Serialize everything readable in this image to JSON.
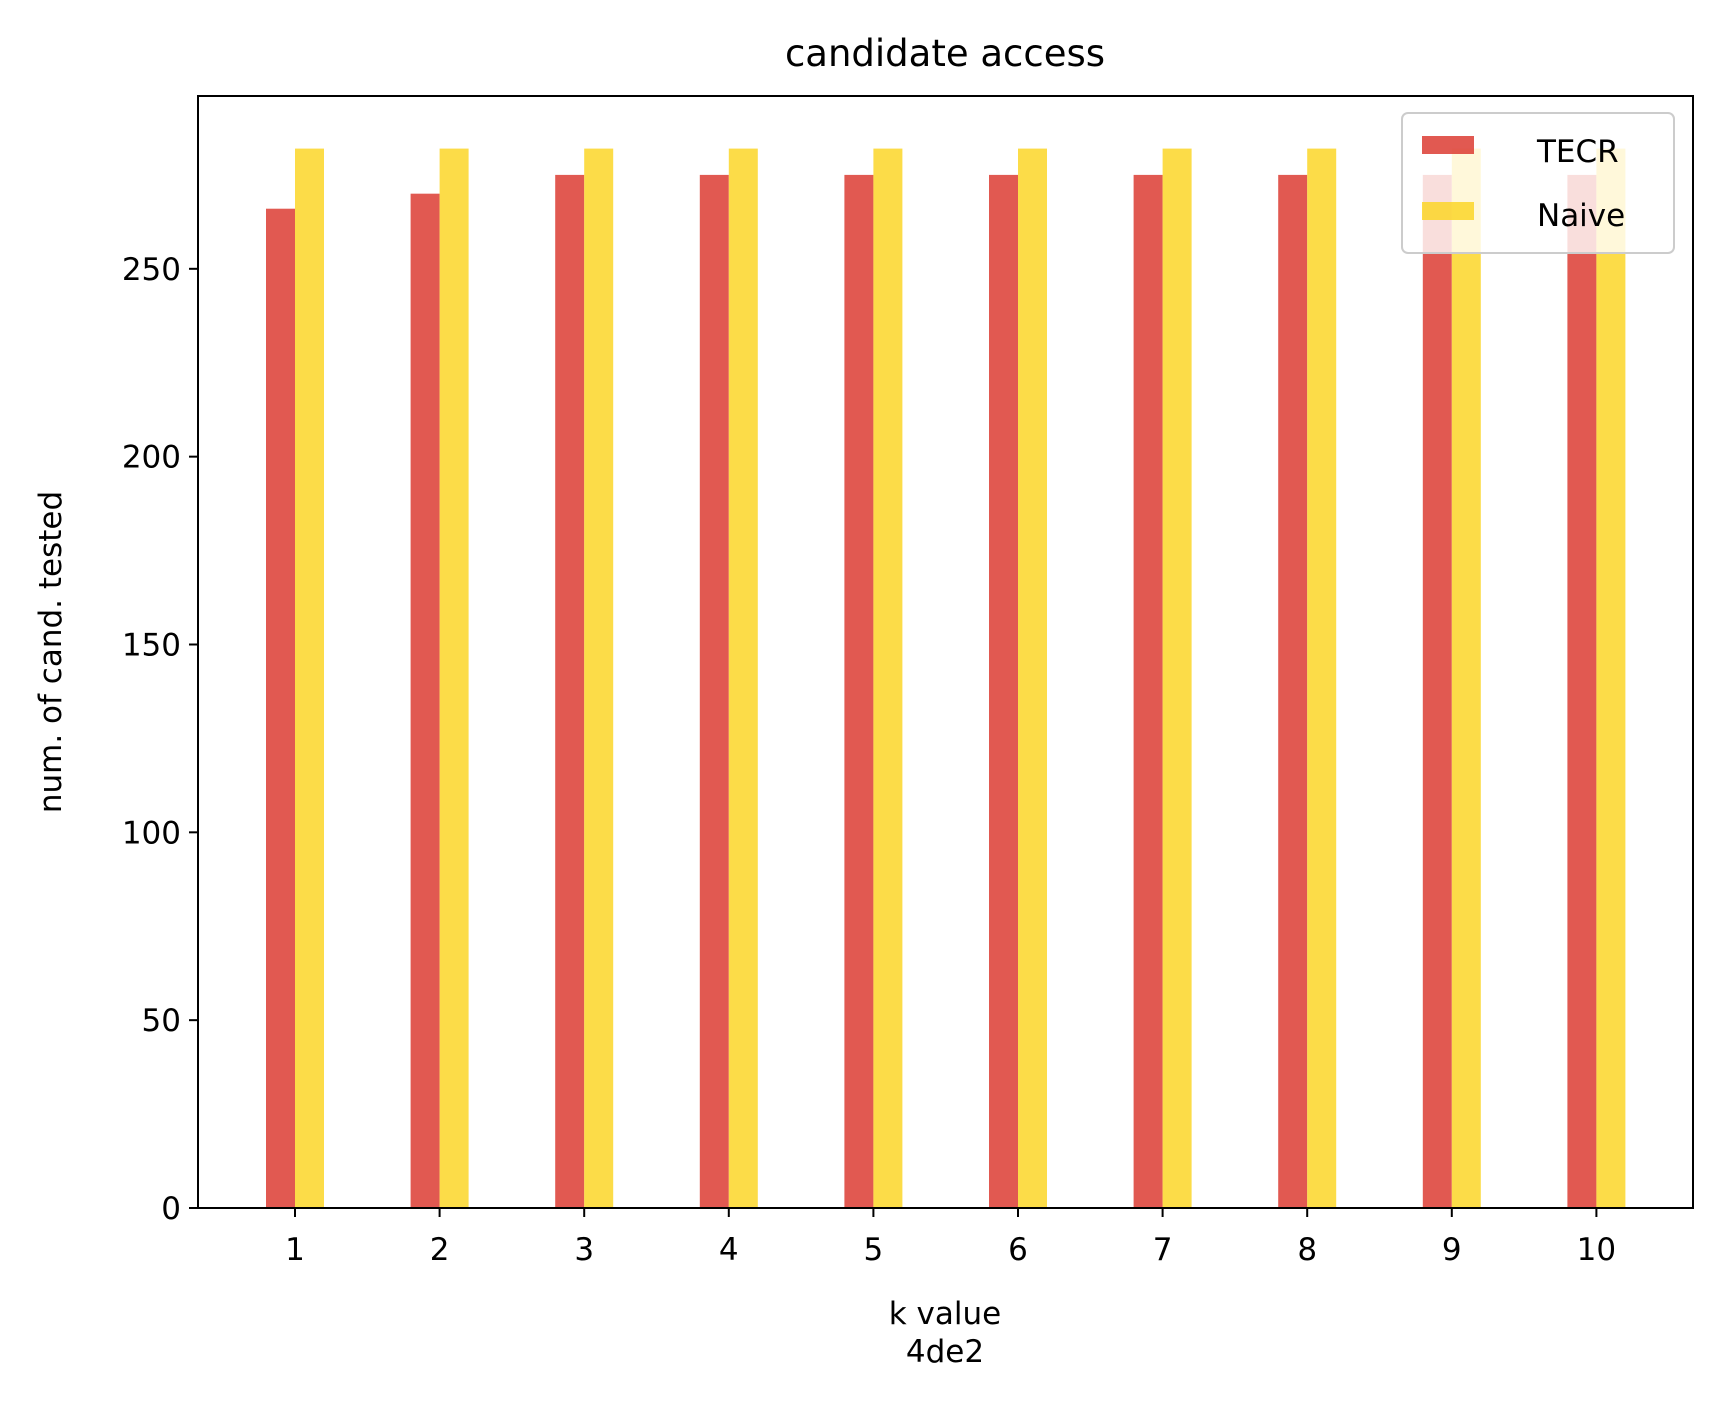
{
  "chart_data": {
    "type": "bar",
    "title": "candidate access",
    "xlabel": "k value",
    "xlabel_sub": "4de2",
    "ylabel": "num. of cand. tested",
    "categories": [
      "1",
      "2",
      "3",
      "4",
      "5",
      "6",
      "7",
      "8",
      "9",
      "10"
    ],
    "series": [
      {
        "name": "TECR",
        "color": "#dc3c32",
        "values": [
          266,
          270,
          275,
          275,
          275,
          275,
          275,
          275,
          275,
          275
        ]
      },
      {
        "name": "Naive",
        "color": "#fbd628",
        "values": [
          282,
          282,
          282,
          282,
          282,
          282,
          282,
          282,
          282,
          282
        ]
      }
    ],
    "yticks": [
      0,
      50,
      100,
      150,
      200,
      250
    ],
    "ylim": [
      0,
      296
    ],
    "bar_opacity": 0.85,
    "grid": false,
    "legend_position": "top-right"
  }
}
